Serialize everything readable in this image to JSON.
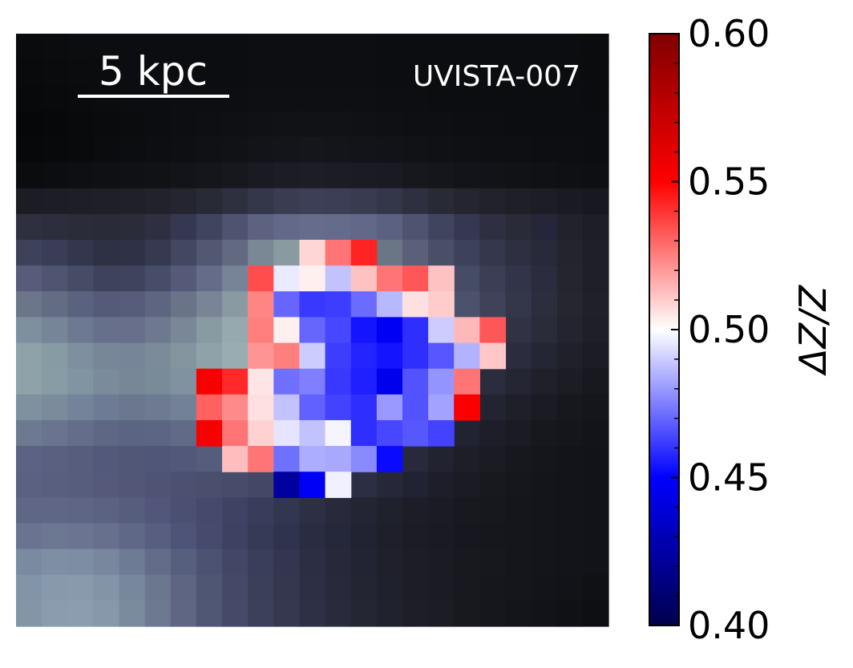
{
  "chart_data": {
    "type": "heatmap",
    "title": "",
    "object_label": "UVISTA-007",
    "scale_bar_label": "5 kpc",
    "colorbar": {
      "label": "ΔZ/Z",
      "range": [
        0.4,
        0.6
      ],
      "ticks": [
        "0.40",
        "0.45",
        "0.50",
        "0.55",
        "0.60"
      ],
      "colormap": "seismic"
    },
    "grid_size": [
      23,
      23
    ],
    "background_rows": [
      "#0a0b0d,#0b0c0e,#0c0d10,#0c0d10,#0c0d10,#0c0d10,#0c0d10,#0c0d10,#0c0d10,#0d0e11,#0d0e11,#0d0e11,#0d0e11,#0d0e11,#0c0d10,#0c0d10,#0c0d10,#0c0d10,#0c0d10,#0c0d10,#0c0d10,#0c0d10,#0b0c0e",
      "#090a0c,#0a0b0d,#0b0c0e,#0b0c0e,#0c0d10,#0c0d10,#0c0d10,#0c0d10,#0c0d10,#0d0e11,#0d0e11,#0d0e11,#0d0e11,#0d0e11,#0c0d10,#0c0d10,#0c0d10,#0c0d10,#0c0d10,#0c0d10,#0c0d10,#0c0d10,#0b0c0e",
      "#08090b,#090a0c,#0a0b0d,#0b0c0e,#0c0d10,#0c0d10,#0d0e11,#0d0e11,#0d0e11,#0e0f12,#0e0f12,#0e0f12,#0e0f12,#0e0f12,#0d0e11,#0d0e11,#0c0d10,#0c0d10,#0c0d10,#0c0d10,#0c0d10,#0c0d10,#0b0c0e",
      "#060709,#07080a,#090a0c,#0a0b0d,#0b0c0e,#0c0d10,#0d0e11,#0e0f12,#0f1013,#101115,#111216,#111216,#111216,#101115,#0f1013,#0e0f12,#0e0f12,#0d0e11,#0d0e11,#0c0d10,#0c0d10,#0c0d10,#0c0d10",
      "#07080a,#08090b,#090a0c,#0b0c0e,#0c0d10,#0d0e11,#0e0f12,#101115,#111216,#131419,#14151a,#15161b,#14151a,#131419,#121318,#111216,#101115,#0f1013,#0e0f12,#0e0f12,#0d0e11,#0d0e11,#0c0d10",
      "#0b0c0e,#0c0d10,#0e0f12,#0f1013,#101115,#111216,#131419,#15161b,#17181e,#1a1b22,#1c1d24,#1d1e25,#1c1d24,#1b1c23,#1a1b22,#17181e,#15161b,#131419,#121318,#111216,#101115,#0f1013,#0e0f12",
      "#1b1c24,#1c1d25,#1d1e26,#1e1f27,#1f2028,#21222b,#242530,#282a36,#2e3040,#34374a,#3a3d52,#3c3f56,#3b3e54,#393c51,#34374a,#2e3040,#282a36,#242530,#21222b,#1e1f27,#1c1d25,#1a1b22,#181920",
      "#2e3040,#2c2e3d,#2a2c3a,#292b38,#2a2c3a,#2e3042,#353850,#40445e,#4e5370,#5c6280,#636a89,#666c8b,#656b8a,#626888,#5b6180,#4e5370,#40445e,#353850,#2e3042,#292b38,#25263a,#21222b,#1d1e26",
      "#3e415a,#3a3d55,#33364c,#2e3044,#2f3146,#363950,#43475f,#525871,#626a82,#7a8895,#8a9aa1,#8a9aa1,#8694a0,#7a8895,#6a7585,#5a6078,#4a4f68,#3e415a,#35374c,#2e3042,#282a3a,#23242e,#1e1f28",
      "#575c7a,#4f5470,#464b66,#3e425c,#3f435e,#474c68,#545a78,#646c8a,#778497,#8fa0a7,#9fb2b6,#a4b6b9,#a0b2b6,#909fa8,#7c8899,#676f89,#545a78,#464b66,#3b3e55,#323449,#2b2d3e,#24252f,#1e1f28",
      "#6b768b,#646c84,#5b6280,#545a78,#565c7a,#5e6580,#6a7388,#798596,#8a9aa3,#9db0b4,#a9bcbd,#abbdbe,#a8bbbc,#9aaab0,#8794a0,#747e92,#5f667e,#4d526c,#3f4259,#34364a,#2c2e3e,#25262f,#1f2029",
      "#7e8fa0,#768598,#6d7990,#66708a,#676f8a,#6e7990,#7a8797,#889aa2,#96aaae,#a3b6b8,#abbdbe,#aabcbd,#a5b8ba,#98aaae,#8696a0,#717c8f,#5b6279,#494d66,#3c3f55,#313345,#2a2c3a,#23242d,#1e1f27",
      "#8ea2aa,#879ba5,#7e8fa0,#778798,#768598,#7b8b9a,#8495a0,#8fa2a9,#99adb0,#a2b5b7,#a6b9ba,#a2b5b7,#9aadb1,#8c9ea6,#7a8898,#647084,#4f566c,#3e4256,#33354a,#2b2d3e,#242633,#1f202a,#1b1c24",
      "#8ea2aa,#889ca6,#8194a1,#7a8b9b,#778798,#798a99,#8092a0,#899ca6,#91a4ab,#97aaae,#98abaf,#93a6ab,#8a9ca5,#7b8a9a,#687486,#535b70,#41465a,#34374b,#2b2d3e,#242634,#1f2029,#1b1c24,#18191f",
      "#7f90a0,#7b8b9b,#74839a,#6e7b94,#6b778f,#6d7a91,#738197,#7b8a9c,#8293a1,#8697a3,#8596a2,#7f8f9d,#768494,#667284,#545d71,#42485c,#34374a,#2a2c3c,#232431,#1e1f29,#1a1b23,#17181e,#15161b",
      "#6d7891,#6a748e,#646d89,#5e6784,#5b6482,#5c6583,#616b87,#68718b,#6d778e,#6f798f,#6c768c,#646e85,#59627a,#4b536a,#3d4358,#313548,#282a3a,#222330,#1d1e28,#1a1b23,#17181e,#15161b,#131419",
      "#5c6283,#5a6080,#575d7d,#53597a,#515777,#505677,#525879,#565c7c,#595f7e,#5a607e,#575d7b,#515774,#474d68,#3b405a,#30344a,#28293b,#222330,#1d1e28,#1a1b23,#17181e,#15161b,#131419,#121318",
      "#5b6180,#595f7e,#575d7c,#55597a,#525777,#4f5474,#4c5171,#4a4f6e,#474c6b,#444866,#40445f,#3a3e57,#33364d,#2c2f43,#26283a,#212332,#1d1e2a,#1a1b24,#18191f,#16171c,#14151a,#131419,#121318",
      "#606685,#606685,#5f6584,#5c6281,#575d7c,#51567a,#4b5073,#45496b,#3f4363,#393c5a,#33364f,#2d3045,#282a3c,#232533,#1f212c,#1c1d27,#1a1b23,#18191f,#17181d,#15161b,#14151a,#131419,#121318",
      "#6a7490,#6c7792,#6b7591,#67708d,#606887,#575e80,#4e5477,#464b6d,#3e4262,#373a57,#30334c,#2a2d42,#25273a,#212232,#1e1f2b,#1b1c26,#191a22,#17181f,#16171c,#15161b,#14151a,#131419,#121318",
      "#7a8aa0,#7e8fa3,#7d8da2,#78879d,#6e7b95,#636d8a,#575f7e,#4c5372,#424766,#3a3e5a,#33364e,#2c2f44,#27293b,#222433,#1f202c,#1c1d27,#1a1b23,#18191f,#17181d,#15161b,#14151a,#131419,#121318",
      "#8294a8,#8899ac,#889aab,#8394a6,#78889c,#6b778f,#5d6582,#4f5674,#444967,#3b3f5a,#34374e,#2d3044,#282a3b,#232533,#1f212c,#1c1d27,#1a1b23,#18191f,#16171c,#15161b,#131419,#121318,#101115",
      "#8495a8,#8a9cae,#8b9dae,#8698a9,#7b8b9e,#6d7990,#5e6683,#505775,#454a68,#3c405b,#35384f,#2e3145,#292b3c,#242634,#20222d,#1d1e28,#1b1c24,#18191f,#16171c,#14151a,#121318,#101115,#0e0f12"
    ],
    "map_rows": [
      "-,-,-,-,-,-,-,-,-,-,-,-,-,-,-,-,-,-,-,-,-,-,-",
      "-,-,-,-,-,-,-,-,-,-,-,-,-,-,-,-,-,-,-,-,-,-,-",
      "-,-,-,-,-,-,-,-,-,-,-,-,-,-,-,-,-,-,-,-,-,-,-",
      "-,-,-,-,-,-,-,-,-,-,-,-,-,-,-,-,-,-,-,-,-,-,-",
      "-,-,-,-,-,-,-,-,-,-,-,-,-,-,-,-,-,-,-,-,-,-,-",
      "-,-,-,-,-,-,-,-,-,-,-,-,-,-,-,-,-,-,-,-,-,-,-",
      "-,-,-,-,-,-,-,-,-,-,-,-,-,-,-,-,-,-,-,-,-,-,-",
      "-,-,-,-,-,-,-,-,-,-,-,-,-,-,-,-,-,-,-,-,-,-,-",
      "-,-,-,-,-,-,-,-,-,-,-,0.508,0.527,0.543,-,-,-,-,-,-,-,-,-",
      "-,-,-,-,-,-,-,-,-,0.535,0.496,0.503,0.488,0.512,0.527,0.533,0.512,-,-,-,-,-,-",
      "-,-,-,-,-,-,-,-,-,0.524,0.470,0.461,0.462,0.471,0.486,0.506,0.510,-,-,-,-,-,-",
      "-,-,-,-,-,-,-,-,-,0.525,0.503,0.470,0.464,0.454,0.447,0.459,0.490,0.514,0.533,-,-,-,-",
      "-,-,-,-,-,-,-,-,-,0.521,0.525,0.490,0.462,0.457,0.454,0.459,0.467,0.485,0.511,-,-,-,-",
      "-,-,-,-,-,-,-,0.553,0.542,0.505,0.472,0.475,0.461,0.456,0.445,0.466,0.479,0.527,-,-,-,-,-",
      "-,-,-,-,-,-,-,0.531,0.523,0.506,0.488,0.469,0.463,0.459,0.480,0.466,0.482,0.552,-,-,-,-,-",
      "-,-,-,-,-,-,-,0.553,0.527,0.509,0.495,0.488,0.498,0.459,0.464,0.467,0.463,-,-,-,-,-,-",
      "-,-,-,-,-,-,-,-,0.513,0.527,0.472,0.484,0.483,0.477,0.452,-,-,-,-,-,-,-,-",
      "-,-,-,-,-,-,-,-,-,-,0.423,0.447,0.497,-,-,-,-,-,-,-,-,-,-",
      "-,-,-,-,-,-,-,-,-,-,-,-,-,-,-,-,-,-,-,-,-,-,-",
      "-,-,-,-,-,-,-,-,-,-,-,-,-,-,-,-,-,-,-,-,-,-,-",
      "-,-,-,-,-,-,-,-,-,-,-,-,-,-,-,-,-,-,-,-,-,-,-",
      "-,-,-,-,-,-,-,-,-,-,-,-,-,-,-,-,-,-,-,-,-,-,-",
      "-,-,-,-,-,-,-,-,-,-,-,-,-,-,-,-,-,-,-,-,-,-,-"
    ]
  }
}
